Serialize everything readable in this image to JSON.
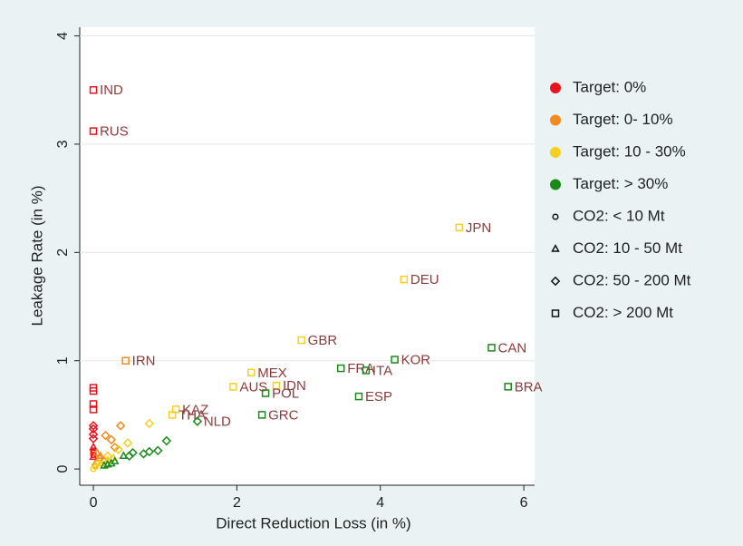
{
  "chart_data": {
    "type": "scatter",
    "xlabel": "Direct Reduction Loss (in %)",
    "ylabel": "Leakage Rate (in %)",
    "xlim": [
      -0.19,
      6.15
    ],
    "ylim": [
      -0.15,
      4.08
    ],
    "xticks": [
      0,
      2,
      4,
      6
    ],
    "yticks": [
      0,
      1,
      2,
      3,
      4
    ],
    "grid": true,
    "color_legend": [
      {
        "name": "Target: 0%",
        "color": "#e8141c"
      },
      {
        "name": "Target: 0- 10%",
        "color": "#f28a1e"
      },
      {
        "name": "Target: 10 - 30%",
        "color": "#f5cf22"
      },
      {
        "name": "Target: > 30%",
        "color": "#1a8a1a"
      }
    ],
    "shape_legend": [
      {
        "name": "CO2: < 10 Mt",
        "marker": "circle"
      },
      {
        "name": "CO2: 10 - 50 Mt",
        "marker": "triangle"
      },
      {
        "name": "CO2: 50 - 200 Mt",
        "marker": "diamond"
      },
      {
        "name": "CO2: > 200 Mt",
        "marker": "square"
      }
    ],
    "series": [
      {
        "color": "#e8141c",
        "marker": "circle",
        "x": [
          0,
          0,
          0
        ],
        "values": [
          0.17,
          0.15,
          0.13
        ],
        "labels": [
          null,
          null,
          null
        ]
      },
      {
        "color": "#e8141c",
        "marker": "triangle",
        "x": [
          0,
          0
        ],
        "values": [
          0.2,
          0.11
        ],
        "labels": [
          null,
          null
        ]
      },
      {
        "color": "#e8141c",
        "marker": "diamond",
        "x": [
          0,
          0,
          0,
          0
        ],
        "values": [
          0.4,
          0.37,
          0.32,
          0.28
        ],
        "labels": [
          null,
          null,
          null,
          null
        ]
      },
      {
        "color": "#e8141c",
        "marker": "square",
        "x": [
          0,
          0,
          0,
          0,
          0,
          0
        ],
        "values": [
          3.5,
          3.12,
          0.75,
          0.72,
          0.6,
          0.55
        ],
        "labels": [
          "IND",
          "RUS",
          null,
          null,
          null,
          null
        ]
      },
      {
        "color": "#f28a1e",
        "marker": "circle",
        "x": [
          0.02,
          0.05,
          0.08
        ],
        "values": [
          0.03,
          0.06,
          0.1
        ],
        "labels": [
          null,
          null,
          null
        ]
      },
      {
        "color": "#f28a1e",
        "marker": "triangle",
        "x": [
          0.1,
          0.15,
          0.05
        ],
        "values": [
          0.12,
          0.08,
          0.15
        ],
        "labels": [
          null,
          null,
          null
        ]
      },
      {
        "color": "#f28a1e",
        "marker": "diamond",
        "x": [
          0.17,
          0.25,
          0.38,
          0.3
        ],
        "values": [
          0.31,
          0.27,
          0.4,
          0.2
        ],
        "labels": [
          null,
          null,
          null,
          null
        ]
      },
      {
        "color": "#f28a1e",
        "marker": "square",
        "x": [
          0.45
        ],
        "values": [
          1.0
        ],
        "labels": [
          "IRN"
        ]
      },
      {
        "color": "#f5cf22",
        "marker": "circle",
        "x": [
          0.0,
          0.03,
          0.06
        ],
        "values": [
          0.0,
          0.02,
          0.05
        ],
        "labels": [
          null,
          null,
          null
        ]
      },
      {
        "color": "#f5cf22",
        "marker": "triangle",
        "x": [
          0.1,
          0.2,
          0.28
        ],
        "values": [
          0.05,
          0.08,
          0.1
        ],
        "labels": [
          null,
          null,
          null
        ]
      },
      {
        "color": "#f5cf22",
        "marker": "diamond",
        "x": [
          0.78,
          0.48,
          0.35,
          0.2
        ],
        "values": [
          0.42,
          0.24,
          0.18,
          0.12
        ],
        "labels": [
          null,
          null,
          null,
          null
        ]
      },
      {
        "color": "#f5cf22",
        "marker": "square",
        "x": [
          5.1,
          4.33,
          2.9,
          2.2,
          2.55,
          1.95,
          1.15,
          1.1
        ],
        "values": [
          2.23,
          1.75,
          1.19,
          0.89,
          0.77,
          0.76,
          0.55,
          0.5
        ],
        "labels": [
          "JPN",
          "DEU",
          "GBR",
          "MEX",
          "IDN",
          "AUS",
          "KAZ",
          "THA"
        ]
      },
      {
        "color": "#1a8a1a",
        "marker": "triangle",
        "x": [
          0.42,
          0.3,
          0.2,
          0.15,
          0.25
        ],
        "values": [
          0.12,
          0.07,
          0.04,
          0.03,
          0.05
        ],
        "labels": [
          null,
          null,
          null,
          null,
          null
        ]
      },
      {
        "color": "#1a8a1a",
        "marker": "diamond",
        "x": [
          1.45,
          1.02,
          0.9,
          0.78,
          0.7,
          0.55,
          0.5
        ],
        "values": [
          0.44,
          0.26,
          0.17,
          0.16,
          0.14,
          0.15,
          0.12
        ],
        "labels": [
          "NLD",
          null,
          null,
          null,
          null,
          null,
          null
        ]
      },
      {
        "color": "#1a8a1a",
        "marker": "square",
        "x": [
          5.55,
          4.2,
          3.45,
          3.8,
          5.78,
          3.7,
          2.4,
          2.35
        ],
        "values": [
          1.12,
          1.01,
          0.93,
          0.91,
          0.76,
          0.67,
          0.7,
          0.5
        ],
        "labels": [
          "CAN",
          "KOR",
          "FRA",
          "ITA",
          "BRA",
          "ESP",
          "POL",
          "GRC"
        ]
      }
    ]
  }
}
